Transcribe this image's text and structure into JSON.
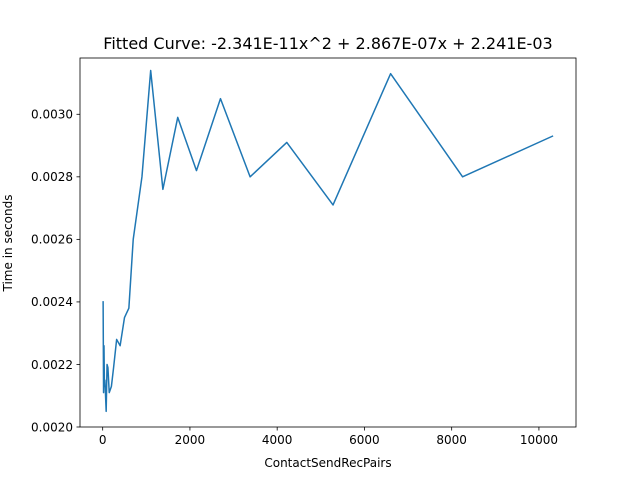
{
  "chart_data": {
    "type": "line",
    "title": "Fitted Curve: -2.341E-11x^2 + 2.867E-07x + 2.241E-03",
    "xlabel": "ContactSendRecPairs",
    "ylabel": "Time in seconds",
    "xlim": [
      -520,
      10850
    ],
    "ylim": [
      0.002,
      0.00318
    ],
    "x_ticks": [
      0,
      2000,
      4000,
      6000,
      8000,
      10000
    ],
    "x_tick_labels": [
      "0",
      "2000",
      "4000",
      "6000",
      "8000",
      "10000"
    ],
    "y_ticks": [
      0.002,
      0.0022,
      0.0024,
      0.0026,
      0.0028,
      0.003
    ],
    "y_tick_labels": [
      "0.0020",
      "0.0022",
      "0.0024",
      "0.0026",
      "0.0028",
      "0.0030"
    ],
    "grid": false,
    "series": [
      {
        "color": "#1f77b4",
        "x": [
          10,
          20,
          30,
          40,
          50,
          60,
          80,
          100,
          120,
          150,
          200,
          250,
          320,
          400,
          500,
          600,
          700,
          900,
          1100,
          1380,
          1720,
          2150,
          2700,
          3380,
          4220,
          5280,
          6600,
          8250,
          10310
        ],
        "y": [
          0.0024,
          0.00211,
          0.00226,
          0.00213,
          0.00215,
          0.00212,
          0.00205,
          0.0022,
          0.00219,
          0.00211,
          0.00213,
          0.00219,
          0.00228,
          0.00226,
          0.00235,
          0.00238,
          0.0026,
          0.0028,
          0.00314,
          0.00276,
          0.00299,
          0.00282,
          0.00305,
          0.0028,
          0.00291,
          0.00271,
          0.00313,
          0.0028,
          0.00293
        ]
      }
    ]
  }
}
